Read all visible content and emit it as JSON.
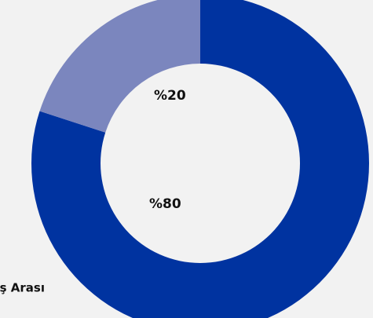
{
  "chart_data": {
    "type": "donut",
    "categories": [
      "Yaş Arası",
      null
    ],
    "values": [
      80,
      20
    ],
    "value_labels": [
      "%80",
      "%20"
    ],
    "colors": [
      "#0033a0",
      "#7b86be"
    ]
  }
}
